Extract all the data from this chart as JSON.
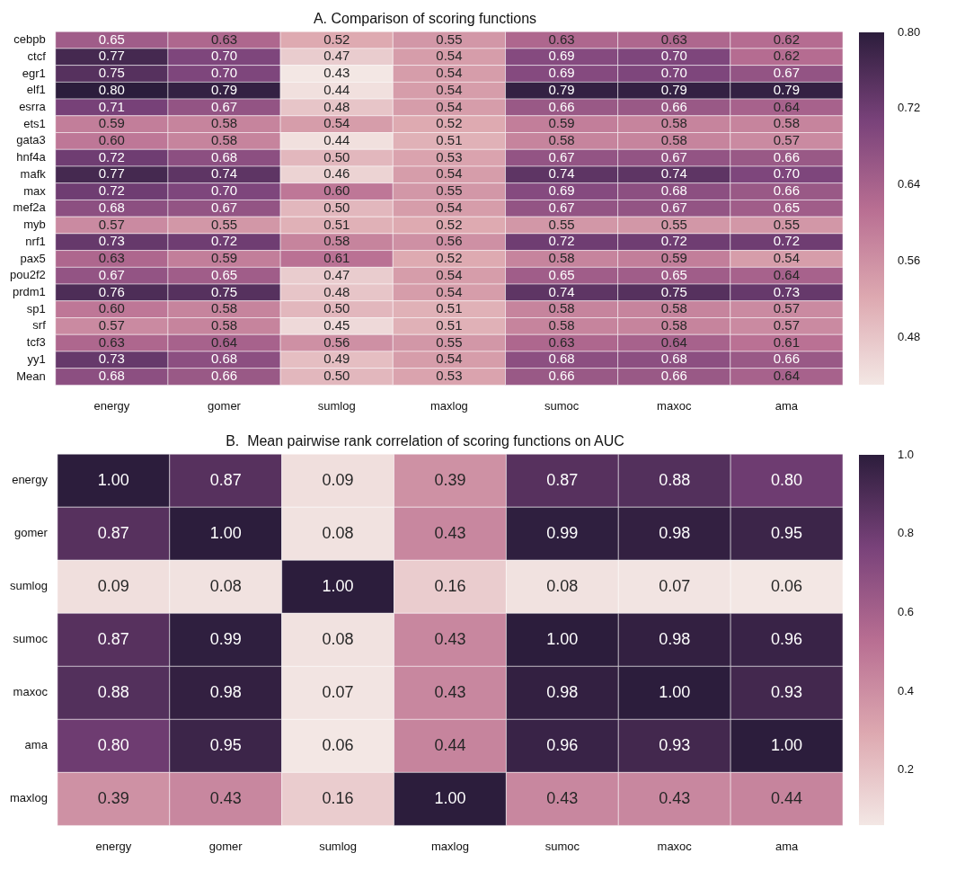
{
  "chart_data": [
    {
      "type": "heatmap",
      "title": "A. Comparison of scoring functions",
      "categories": [
        "energy",
        "gomer",
        "sumlog",
        "maxlog",
        "sumoc",
        "maxoc",
        "ama"
      ],
      "y_categories": [
        "cebpb",
        "ctcf",
        "egr1",
        "elf1",
        "esrra",
        "ets1",
        "gata3",
        "hnf4a",
        "mafk",
        "max",
        "mef2a",
        "myb",
        "nrf1",
        "pax5",
        "pou2f2",
        "prdm1",
        "sp1",
        "srf",
        "tcf3",
        "yy1",
        "Mean"
      ],
      "cells": [
        [
          0.65,
          0.63,
          0.52,
          0.55,
          0.63,
          0.63,
          0.62
        ],
        [
          0.77,
          0.7,
          0.47,
          0.54,
          0.69,
          0.7,
          0.62
        ],
        [
          0.75,
          0.7,
          0.43,
          0.54,
          0.69,
          0.7,
          0.67
        ],
        [
          0.8,
          0.79,
          0.44,
          0.54,
          0.79,
          0.79,
          0.79
        ],
        [
          0.71,
          0.67,
          0.48,
          0.54,
          0.66,
          0.66,
          0.64
        ],
        [
          0.59,
          0.58,
          0.54,
          0.52,
          0.59,
          0.58,
          0.58
        ],
        [
          0.6,
          0.58,
          0.44,
          0.51,
          0.58,
          0.58,
          0.57
        ],
        [
          0.72,
          0.68,
          0.5,
          0.53,
          0.67,
          0.67,
          0.66
        ],
        [
          0.77,
          0.74,
          0.46,
          0.54,
          0.74,
          0.74,
          0.7
        ],
        [
          0.72,
          0.7,
          0.6,
          0.55,
          0.69,
          0.68,
          0.66
        ],
        [
          0.68,
          0.67,
          0.5,
          0.54,
          0.67,
          0.67,
          0.65
        ],
        [
          0.57,
          0.55,
          0.51,
          0.52,
          0.55,
          0.55,
          0.55
        ],
        [
          0.73,
          0.72,
          0.58,
          0.56,
          0.72,
          0.72,
          0.72
        ],
        [
          0.63,
          0.59,
          0.61,
          0.52,
          0.58,
          0.59,
          0.54
        ],
        [
          0.67,
          0.65,
          0.47,
          0.54,
          0.65,
          0.65,
          0.64
        ],
        [
          0.76,
          0.75,
          0.48,
          0.54,
          0.74,
          0.75,
          0.73
        ],
        [
          0.6,
          0.58,
          0.5,
          0.51,
          0.58,
          0.58,
          0.57
        ],
        [
          0.57,
          0.58,
          0.45,
          0.51,
          0.58,
          0.58,
          0.57
        ],
        [
          0.63,
          0.64,
          0.56,
          0.55,
          0.63,
          0.64,
          0.61
        ],
        [
          0.73,
          0.68,
          0.49,
          0.54,
          0.68,
          0.68,
          0.66
        ],
        [
          0.68,
          0.66,
          0.5,
          0.53,
          0.66,
          0.66,
          0.64
        ]
      ],
      "cell_labels": [
        [
          "0.65",
          "0.63",
          "0.52",
          "0.55",
          "0.63",
          "0.63",
          "0.62"
        ],
        [
          "0.77",
          "0.70",
          "0.47",
          "0.54",
          "0.69",
          "0.70",
          "0.62"
        ],
        [
          "0.75",
          "0.70",
          "0.43",
          "0.54",
          "0.69",
          "0.70",
          "0.67"
        ],
        [
          "0.80",
          "0.79",
          "0.44",
          "0.54",
          "0.79",
          "0.79",
          "0.79"
        ],
        [
          "0.71",
          "0.67",
          "0.48",
          "0.54",
          "0.66",
          "0.66",
          "0.64"
        ],
        [
          "0.59",
          "0.58",
          "0.54",
          "0.52",
          "0.59",
          "0.58",
          "0.58"
        ],
        [
          "0.60",
          "0.58",
          "0.44",
          "0.51",
          "0.58",
          "0.58",
          "0.57"
        ],
        [
          "0.72",
          "0.68",
          "0.50",
          "0.53",
          "0.67",
          "0.67",
          "0.66"
        ],
        [
          "0.77",
          "0.74",
          "0.46",
          "0.54",
          "0.74",
          "0.74",
          "0.70"
        ],
        [
          "0.72",
          "0.70",
          "0.60",
          "0.55",
          "0.69",
          "0.68",
          "0.66"
        ],
        [
          "0.68",
          "0.67",
          "0.50",
          "0.54",
          "0.67",
          "0.67",
          "0.65"
        ],
        [
          "0.57",
          "0.55",
          "0.51",
          "0.52",
          "0.55",
          "0.55",
          "0.55"
        ],
        [
          "0.73",
          "0.72",
          "0.58",
          "0.56",
          "0.72",
          "0.72",
          "0.72"
        ],
        [
          "0.63",
          "0.59",
          "0.61",
          "0.52",
          "0.58",
          "0.59",
          "0.54"
        ],
        [
          "0.67",
          "0.65",
          "0.47",
          "0.54",
          "0.65",
          "0.65",
          "0.64"
        ],
        [
          "0.76",
          "0.75",
          "0.48",
          "0.54",
          "0.74",
          "0.75",
          "0.73"
        ],
        [
          "0.60",
          "0.58",
          "0.50",
          "0.51",
          "0.58",
          "0.58",
          "0.57"
        ],
        [
          "0.57",
          "0.58",
          "0.45",
          "0.51",
          "0.58",
          "0.58",
          "0.57"
        ],
        [
          "0.63",
          "0.64",
          "0.56",
          "0.55",
          "0.63",
          "0.64",
          "0.61"
        ],
        [
          "0.73",
          "0.68",
          "0.49",
          "0.54",
          "0.68",
          "0.68",
          "0.66"
        ],
        [
          "0.68",
          "0.66",
          "0.50",
          "0.53",
          "0.66",
          "0.66",
          "0.64"
        ]
      ],
      "data_labels": true,
      "clim": [
        0.43,
        0.8
      ],
      "cticks": [
        0.48,
        0.56,
        0.64,
        0.72,
        {
          "value": 0.8,
          "label": "0.80"
        }
      ]
    },
    {
      "type": "heatmap",
      "title": "B.  Mean pairwise rank correlation of scoring functions on AUC",
      "categories": [
        "energy",
        "gomer",
        "sumlog",
        "maxlog",
        "sumoc",
        "maxoc",
        "ama"
      ],
      "y_categories": [
        "energy",
        "gomer",
        "sumlog",
        "sumoc",
        "maxoc",
        "ama",
        "maxlog"
      ],
      "cells": [
        [
          1.0,
          0.87,
          0.09,
          0.39,
          0.87,
          0.88,
          0.8
        ],
        [
          0.87,
          1.0,
          0.08,
          0.43,
          0.99,
          0.98,
          0.95
        ],
        [
          0.09,
          0.08,
          1.0,
          0.16,
          0.08,
          0.07,
          0.06
        ],
        [
          0.87,
          0.99,
          0.08,
          0.43,
          1.0,
          0.98,
          0.96
        ],
        [
          0.88,
          0.98,
          0.07,
          0.43,
          0.98,
          1.0,
          0.93
        ],
        [
          0.8,
          0.95,
          0.06,
          0.44,
          0.96,
          0.93,
          1.0
        ],
        [
          0.39,
          0.43,
          0.16,
          1.0,
          0.43,
          0.43,
          0.44
        ]
      ],
      "cell_labels": [
        [
          "1.00",
          "0.87",
          "0.09",
          "0.39",
          "0.87",
          "0.88",
          "0.80"
        ],
        [
          "0.87",
          "1.00",
          "0.08",
          "0.43",
          "0.99",
          "0.98",
          "0.95"
        ],
        [
          "0.09",
          "0.08",
          "1.00",
          "0.16",
          "0.08",
          "0.07",
          "0.06"
        ],
        [
          "0.87",
          "0.99",
          "0.08",
          "0.43",
          "1.00",
          "0.98",
          "0.96"
        ],
        [
          "0.88",
          "0.98",
          "0.07",
          "0.43",
          "0.98",
          "1.00",
          "0.93"
        ],
        [
          "0.80",
          "0.95",
          "0.06",
          "0.44",
          "0.96",
          "0.93",
          "1.00"
        ],
        [
          "0.39",
          "0.43",
          "0.16",
          "1.00",
          "0.43",
          "0.43",
          "0.44"
        ]
      ],
      "data_labels": true,
      "clim": [
        0.06,
        1.0
      ],
      "cticks": [
        0.2,
        0.4,
        0.6,
        0.8,
        {
          "value": 1.0,
          "label": "1.0"
        }
      ]
    }
  ]
}
